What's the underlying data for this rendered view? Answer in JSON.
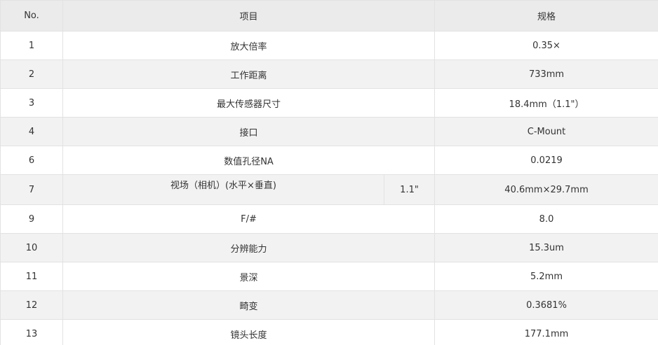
{
  "table": {
    "header": [
      "No.",
      "项目",
      "规格"
    ],
    "rows": [
      [
        "1",
        "放大倍率",
        "0.35×"
      ],
      [
        "2",
        "工作距离",
        "733mm"
      ],
      [
        "3",
        "最大传感器尺寸",
        "18.4mm（1.1\"）"
      ],
      [
        "4",
        "接口",
        "C-Mount"
      ],
      [
        "6",
        "数值孔径NA",
        "0.0219"
      ],
      [
        "7",
        "视场（相机）(水平×垂直)",
        "1.1\"",
        "40.6mm×29.7mm"
      ],
      [
        "9",
        "F/#",
        "8.0"
      ],
      [
        "10",
        "分辨能力",
        "15.3um"
      ],
      [
        "11",
        "景深",
        "5.2mm"
      ],
      [
        "12",
        "畸变",
        "0.3681%"
      ],
      [
        "13",
        "镜头长度",
        "177.1mm"
      ]
    ]
  }
}
